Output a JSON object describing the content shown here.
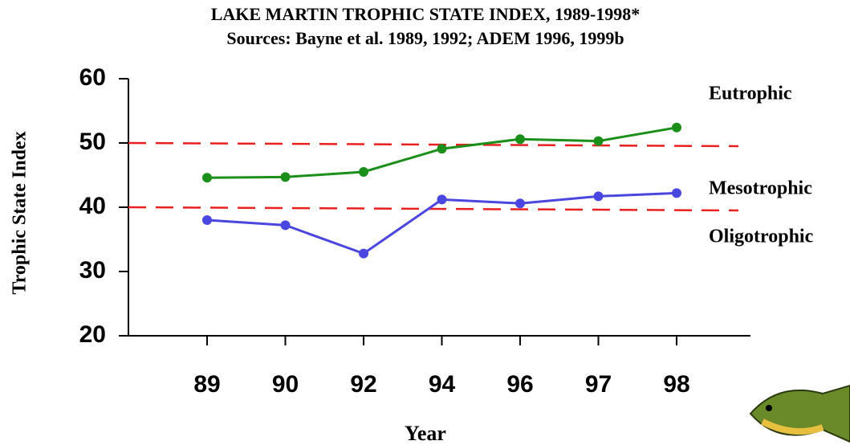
{
  "chart_data": {
    "type": "line",
    "title": "LAKE MARTIN TROPHIC STATE INDEX, 1989-1998*",
    "subtitle": "Sources: Bayne et al. 1989, 1992; ADEM 1996, 1999b",
    "x_label": "Year",
    "y_label": "Trophic State Index",
    "categories": [
      "89",
      "90",
      "92",
      "94",
      "96",
      "97",
      "98"
    ],
    "series": [
      {
        "color": "#1a8f1a",
        "values": [
          44.6,
          44.7,
          45.5,
          49.1,
          50.6,
          50.3,
          52.4
        ]
      },
      {
        "color": "#4a46e0",
        "values": [
          38.0,
          37.2,
          32.8,
          41.2,
          40.6,
          41.7,
          42.2
        ]
      }
    ],
    "ylim": [
      20,
      60
    ],
    "yticks": [
      20,
      30,
      40,
      50,
      60
    ],
    "reference_lines": [
      {
        "value": 50,
        "color": "#e82020"
      },
      {
        "value": 40,
        "color": "#e82020"
      }
    ],
    "annotations": [
      "Eutrophic",
      "Mesotrophic",
      "Oligotrophic"
    ]
  }
}
